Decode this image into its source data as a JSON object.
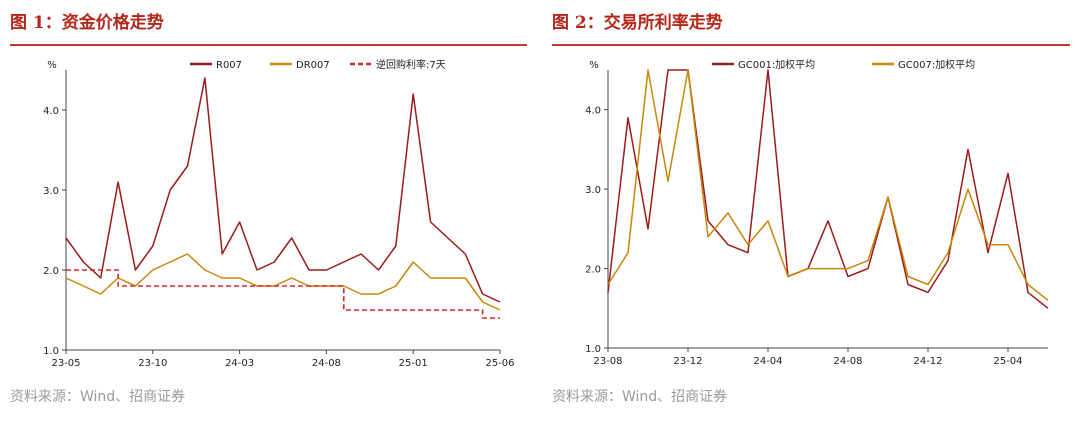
{
  "figures": [
    {
      "title": "图 1：资金价格走势",
      "source": "资料来源：Wind、招商证券",
      "chart_data": {
        "type": "line",
        "ylabel": "%",
        "ylim": [
          1.0,
          4.5
        ],
        "yticks": [
          "1.0",
          "2.0",
          "3.0",
          "4.0"
        ],
        "xticks": [
          "23-05",
          "23-10",
          "24-03",
          "24-08",
          "25-01",
          "25-06"
        ],
        "legend_position": "top",
        "grid": false,
        "series": [
          {
            "name": "R007",
            "color": "#9b1b1b",
            "dash": false,
            "x": [
              "23-05",
              "23-06",
              "23-07",
              "23-08",
              "23-09",
              "23-10",
              "23-11",
              "23-12",
              "24-01",
              "24-02",
              "24-03",
              "24-04",
              "24-05",
              "24-06",
              "24-07",
              "24-08",
              "24-09",
              "24-10",
              "24-11",
              "24-12",
              "25-01",
              "25-02",
              "25-03",
              "25-04",
              "25-05",
              "25-06"
            ],
            "values": [
              2.4,
              2.1,
              1.9,
              3.1,
              2.0,
              2.3,
              3.0,
              3.3,
              4.4,
              2.2,
              2.6,
              2.0,
              2.1,
              2.4,
              2.0,
              2.0,
              2.1,
              2.2,
              2.0,
              2.3,
              4.2,
              2.6,
              2.4,
              2.2,
              1.7,
              1.6
            ]
          },
          {
            "name": "DR007",
            "color": "#c8860a",
            "dash": false,
            "x": [
              "23-05",
              "23-06",
              "23-07",
              "23-08",
              "23-09",
              "23-10",
              "23-11",
              "23-12",
              "24-01",
              "24-02",
              "24-03",
              "24-04",
              "24-05",
              "24-06",
              "24-07",
              "24-08",
              "24-09",
              "24-10",
              "24-11",
              "24-12",
              "25-01",
              "25-02",
              "25-03",
              "25-04",
              "25-05",
              "25-06"
            ],
            "values": [
              1.9,
              1.8,
              1.7,
              1.9,
              1.8,
              2.0,
              2.1,
              2.2,
              2.0,
              1.9,
              1.9,
              1.8,
              1.8,
              1.9,
              1.8,
              1.8,
              1.8,
              1.7,
              1.7,
              1.8,
              2.1,
              1.9,
              1.9,
              1.9,
              1.6,
              1.5
            ]
          },
          {
            "name": "逆回购利率:7天",
            "color": "#d62828",
            "dash": true,
            "x": [
              "23-05",
              "23-08",
              "23-08",
              "24-09",
              "24-09",
              "25-05",
              "25-05",
              "25-06"
            ],
            "values": [
              2.0,
              2.0,
              1.8,
              1.8,
              1.5,
              1.5,
              1.4,
              1.4
            ]
          }
        ]
      }
    },
    {
      "title": "图 2：交易所利率走势",
      "source": "资料来源：Wind、招商证券",
      "chart_data": {
        "type": "line",
        "ylabel": "%",
        "ylim": [
          1.0,
          4.5
        ],
        "yticks": [
          "1.0",
          "2.0",
          "3.0",
          "4.0"
        ],
        "xticks": [
          "23-08",
          "23-12",
          "24-04",
          "24-08",
          "24-12",
          "25-04"
        ],
        "legend_position": "top",
        "grid": false,
        "series": [
          {
            "name": "GC001:加权平均",
            "color": "#9b1b1b",
            "dash": false,
            "x": [
              "23-08",
              "23-09",
              "23-10",
              "23-11",
              "23-12",
              "24-01",
              "24-02",
              "24-03",
              "24-04",
              "24-05",
              "24-06",
              "24-07",
              "24-08",
              "24-09",
              "24-10",
              "24-11",
              "24-12",
              "25-01",
              "25-02",
              "25-03",
              "25-04",
              "25-05",
              "25-06"
            ],
            "values": [
              1.7,
              3.9,
              2.5,
              4.5,
              4.5,
              2.6,
              2.3,
              2.2,
              4.5,
              1.9,
              2.0,
              2.6,
              1.9,
              2.0,
              2.9,
              1.8,
              1.7,
              2.1,
              3.5,
              2.2,
              3.2,
              1.7,
              1.5
            ]
          },
          {
            "name": "GC007:加权平均",
            "color": "#c8860a",
            "dash": false,
            "x": [
              "23-08",
              "23-09",
              "23-10",
              "23-11",
              "23-12",
              "24-01",
              "24-02",
              "24-03",
              "24-04",
              "24-05",
              "24-06",
              "24-07",
              "24-08",
              "24-09",
              "24-10",
              "24-11",
              "24-12",
              "25-01",
              "25-02",
              "25-03",
              "25-04",
              "25-05",
              "25-06"
            ],
            "values": [
              1.8,
              2.2,
              4.5,
              3.1,
              4.5,
              2.4,
              2.7,
              2.3,
              2.6,
              1.9,
              2.0,
              2.0,
              2.0,
              2.1,
              2.9,
              1.9,
              1.8,
              2.2,
              3.0,
              2.3,
              2.3,
              1.8,
              1.6
            ]
          }
        ]
      }
    }
  ]
}
